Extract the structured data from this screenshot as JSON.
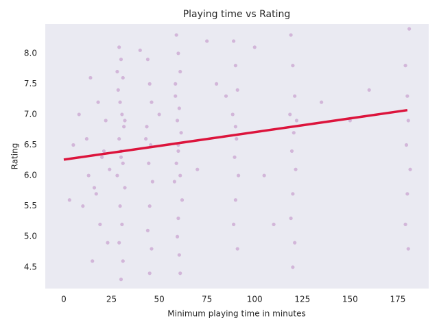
{
  "chart_data": {
    "type": "scatter",
    "title": "Playing time vs Rating",
    "xlabel": "Minimum playing time in minutes",
    "ylabel": "Rating",
    "xlim": [
      -9.7,
      191.2
    ],
    "ylim": [
      4.15,
      8.48
    ],
    "xticks": [
      0,
      25,
      50,
      75,
      100,
      125,
      150,
      175
    ],
    "yticks": [
      4.5,
      {
        "value": 5,
        "label": "5.0"
      },
      5.5,
      {
        "value": 6,
        "label": "6.0"
      },
      6.5,
      {
        "value": 7,
        "label": "7.0"
      },
      7.5,
      {
        "value": 8,
        "label": "8.0"
      }
    ],
    "grid": false,
    "series": [
      {
        "color": "#800080",
        "x": [
          29,
          30,
          31,
          28.5,
          29.5,
          30.5,
          31.5,
          29,
          30,
          31,
          28,
          32,
          29.5,
          30.5,
          29,
          31,
          30,
          28,
          32,
          30,
          59,
          60,
          61,
          58.5,
          60.5,
          59.5,
          61.5,
          60,
          59,
          61,
          58,
          62,
          60,
          59.5,
          60.5,
          61,
          58.5,
          60,
          44,
          45,
          46,
          43.5,
          45.5,
          44.5,
          46.5,
          45,
          44,
          46,
          45,
          43,
          14,
          18,
          22,
          12,
          20,
          24,
          16,
          10,
          19,
          23,
          15,
          21,
          13,
          17,
          89,
          90,
          91,
          88.5,
          90.5,
          89.5,
          91.5,
          90,
          89,
          91,
          90,
          119,
          120,
          121,
          118.5,
          120.5,
          119.5,
          121.5,
          120,
          119,
          121,
          120,
          122,
          181,
          179,
          180,
          180.5,
          179.5,
          181.5,
          180,
          179,
          180.5,
          75,
          80,
          100,
          105,
          150,
          135,
          5,
          3,
          8,
          70,
          85,
          110,
          160,
          40,
          50
        ],
        "y": [
          8.1,
          7.9,
          7.6,
          7.4,
          7.2,
          7.0,
          6.8,
          6.6,
          6.4,
          6.2,
          6.0,
          5.8,
          5.5,
          5.2,
          4.9,
          4.6,
          4.3,
          7.7,
          6.9,
          6.3,
          8.3,
          8.0,
          7.7,
          7.5,
          7.1,
          6.9,
          6.7,
          6.5,
          6.2,
          6.0,
          5.9,
          5.6,
          5.3,
          5.0,
          4.7,
          4.4,
          7.3,
          6.4,
          7.9,
          7.5,
          7.2,
          6.8,
          6.5,
          6.2,
          5.9,
          5.5,
          5.1,
          4.8,
          4.4,
          6.6,
          7.6,
          7.2,
          6.9,
          6.6,
          6.3,
          6.1,
          5.8,
          5.5,
          5.2,
          4.9,
          4.6,
          6.4,
          6.0,
          5.7,
          8.2,
          7.8,
          7.4,
          7.0,
          6.6,
          6.3,
          6.0,
          5.6,
          5.2,
          4.8,
          6.8,
          8.3,
          7.8,
          7.3,
          7.0,
          6.7,
          6.4,
          6.1,
          5.7,
          5.3,
          4.9,
          4.5,
          6.9,
          8.4,
          7.8,
          7.3,
          6.9,
          6.5,
          6.1,
          5.7,
          5.2,
          4.8,
          8.2,
          7.5,
          8.1,
          6.0,
          6.9,
          7.2,
          6.5,
          5.6,
          7.0,
          6.1,
          7.3,
          5.2,
          7.4,
          8.05,
          7.0
        ]
      }
    ],
    "fit": {
      "color": "#dc143c",
      "x": [
        0,
        180
      ],
      "y": [
        6.26,
        7.07
      ]
    }
  }
}
